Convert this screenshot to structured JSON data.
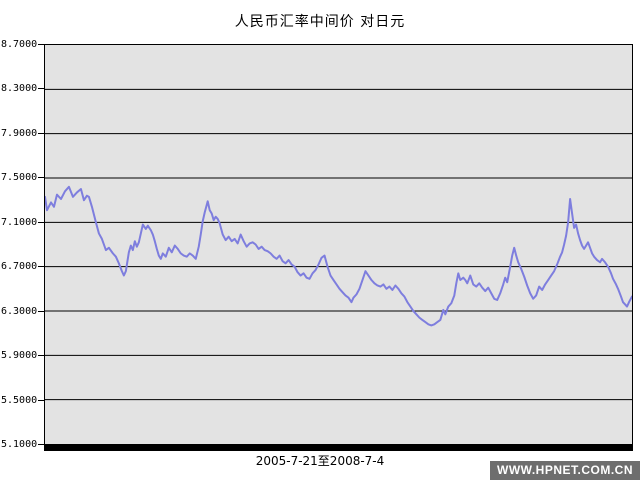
{
  "title": "人民币汇率中间价  对日元",
  "x_axis_label": "2005-7-21至2008-7-4",
  "watermark": "WWW.HPNET.COM.CN",
  "colors": {
    "line": "#7e7ede",
    "plot_bg": "#e3e3e3",
    "grid": "#000000",
    "axis": "#000000",
    "watermark_bg": "#6e6e6e",
    "watermark_text": "#ffffff"
  },
  "chart_data": {
    "type": "line",
    "title": "人民币汇率中间价  对日元",
    "xlabel": "2005-7-21至2008-7-4",
    "ylabel": "",
    "x_range": [
      "2005-7-21",
      "2008-7-4"
    ],
    "ylim": [
      5.1,
      8.7
    ],
    "y_ticks": [
      8.7,
      8.3,
      7.9,
      7.5,
      7.1,
      6.7,
      6.3,
      5.9,
      5.5,
      5.1
    ],
    "y_tick_labels": [
      "8.7000",
      "8.3000",
      "7.9000",
      "7.5000",
      "7.1000",
      "6.7000",
      "6.3000",
      "5.9000",
      "5.5000",
      "5.1000"
    ],
    "grid": true,
    "legend": false,
    "points": [
      [
        0.0,
        7.33
      ],
      [
        0.0034,
        7.21
      ],
      [
        0.0102,
        7.28
      ],
      [
        0.0153,
        7.24
      ],
      [
        0.0204,
        7.35
      ],
      [
        0.0272,
        7.31
      ],
      [
        0.034,
        7.38
      ],
      [
        0.0408,
        7.42
      ],
      [
        0.0476,
        7.33
      ],
      [
        0.0544,
        7.37
      ],
      [
        0.0612,
        7.4
      ],
      [
        0.0663,
        7.3
      ],
      [
        0.0714,
        7.34
      ],
      [
        0.0748,
        7.33
      ],
      [
        0.0799,
        7.24
      ],
      [
        0.0867,
        7.1
      ],
      [
        0.0918,
        7.0
      ],
      [
        0.0969,
        6.95
      ],
      [
        0.1037,
        6.85
      ],
      [
        0.1088,
        6.87
      ],
      [
        0.1156,
        6.82
      ],
      [
        0.1207,
        6.79
      ],
      [
        0.1259,
        6.73
      ],
      [
        0.131,
        6.66
      ],
      [
        0.1344,
        6.62
      ],
      [
        0.1378,
        6.66
      ],
      [
        0.1429,
        6.83
      ],
      [
        0.1463,
        6.89
      ],
      [
        0.1497,
        6.85
      ],
      [
        0.1531,
        6.93
      ],
      [
        0.1565,
        6.88
      ],
      [
        0.1599,
        6.92
      ],
      [
        0.1633,
        7.0
      ],
      [
        0.1667,
        7.08
      ],
      [
        0.1718,
        7.04
      ],
      [
        0.1752,
        7.07
      ],
      [
        0.1803,
        7.03
      ],
      [
        0.1837,
        6.99
      ],
      [
        0.1871,
        6.93
      ],
      [
        0.1905,
        6.86
      ],
      [
        0.1939,
        6.8
      ],
      [
        0.1973,
        6.77
      ],
      [
        0.2007,
        6.82
      ],
      [
        0.2058,
        6.79
      ],
      [
        0.2109,
        6.87
      ],
      [
        0.216,
        6.83
      ],
      [
        0.2211,
        6.89
      ],
      [
        0.2262,
        6.86
      ],
      [
        0.2313,
        6.82
      ],
      [
        0.2364,
        6.8
      ],
      [
        0.2415,
        6.79
      ],
      [
        0.2466,
        6.82
      ],
      [
        0.2517,
        6.8
      ],
      [
        0.2568,
        6.77
      ],
      [
        0.2619,
        6.88
      ],
      [
        0.2653,
        6.99
      ],
      [
        0.2687,
        7.11
      ],
      [
        0.2721,
        7.19
      ],
      [
        0.2772,
        7.29
      ],
      [
        0.2806,
        7.21
      ],
      [
        0.284,
        7.18
      ],
      [
        0.2874,
        7.12
      ],
      [
        0.2908,
        7.15
      ],
      [
        0.2942,
        7.13
      ],
      [
        0.2976,
        7.09
      ],
      [
        0.3027,
        6.99
      ],
      [
        0.3078,
        6.94
      ],
      [
        0.3129,
        6.97
      ],
      [
        0.318,
        6.93
      ],
      [
        0.3231,
        6.95
      ],
      [
        0.3282,
        6.91
      ],
      [
        0.3333,
        6.99
      ],
      [
        0.3384,
        6.93
      ],
      [
        0.3435,
        6.88
      ],
      [
        0.3486,
        6.91
      ],
      [
        0.3537,
        6.92
      ],
      [
        0.3588,
        6.9
      ],
      [
        0.3639,
        6.86
      ],
      [
        0.369,
        6.88
      ],
      [
        0.3741,
        6.85
      ],
      [
        0.3793,
        6.84
      ],
      [
        0.3844,
        6.82
      ],
      [
        0.3895,
        6.79
      ],
      [
        0.3946,
        6.77
      ],
      [
        0.3997,
        6.8
      ],
      [
        0.4048,
        6.75
      ],
      [
        0.4099,
        6.73
      ],
      [
        0.415,
        6.76
      ],
      [
        0.4201,
        6.72
      ],
      [
        0.4252,
        6.7
      ],
      [
        0.4303,
        6.65
      ],
      [
        0.4354,
        6.62
      ],
      [
        0.4405,
        6.64
      ],
      [
        0.4456,
        6.6
      ],
      [
        0.4507,
        6.59
      ],
      [
        0.4558,
        6.64
      ],
      [
        0.4609,
        6.67
      ],
      [
        0.466,
        6.72
      ],
      [
        0.4711,
        6.78
      ],
      [
        0.4762,
        6.8
      ],
      [
        0.4813,
        6.7
      ],
      [
        0.4864,
        6.62
      ],
      [
        0.4915,
        6.58
      ],
      [
        0.4966,
        6.54
      ],
      [
        0.5017,
        6.5
      ],
      [
        0.5068,
        6.47
      ],
      [
        0.5119,
        6.44
      ],
      [
        0.517,
        6.42
      ],
      [
        0.5221,
        6.38
      ],
      [
        0.5255,
        6.42
      ],
      [
        0.5306,
        6.45
      ],
      [
        0.5357,
        6.5
      ],
      [
        0.5408,
        6.58
      ],
      [
        0.5459,
        6.66
      ],
      [
        0.551,
        6.62
      ],
      [
        0.5561,
        6.58
      ],
      [
        0.5612,
        6.55
      ],
      [
        0.5663,
        6.53
      ],
      [
        0.5714,
        6.52
      ],
      [
        0.5765,
        6.54
      ],
      [
        0.5816,
        6.5
      ],
      [
        0.5867,
        6.52
      ],
      [
        0.5918,
        6.49
      ],
      [
        0.5969,
        6.53
      ],
      [
        0.602,
        6.5
      ],
      [
        0.6071,
        6.46
      ],
      [
        0.6122,
        6.43
      ],
      [
        0.6173,
        6.38
      ],
      [
        0.6224,
        6.34
      ],
      [
        0.6276,
        6.3
      ],
      [
        0.6327,
        6.27
      ],
      [
        0.6378,
        6.24
      ],
      [
        0.6429,
        6.22
      ],
      [
        0.648,
        6.2
      ],
      [
        0.6531,
        6.18
      ],
      [
        0.6582,
        6.17
      ],
      [
        0.6633,
        6.18
      ],
      [
        0.6684,
        6.2
      ],
      [
        0.6735,
        6.22
      ],
      [
        0.6786,
        6.31
      ],
      [
        0.682,
        6.27
      ],
      [
        0.6871,
        6.34
      ],
      [
        0.6922,
        6.37
      ],
      [
        0.6973,
        6.44
      ],
      [
        0.7007,
        6.55
      ],
      [
        0.7041,
        6.64
      ],
      [
        0.7075,
        6.58
      ],
      [
        0.7126,
        6.6
      ],
      [
        0.716,
        6.58
      ],
      [
        0.7194,
        6.55
      ],
      [
        0.7245,
        6.62
      ],
      [
        0.7296,
        6.54
      ],
      [
        0.7347,
        6.52
      ],
      [
        0.7398,
        6.55
      ],
      [
        0.7449,
        6.51
      ],
      [
        0.75,
        6.48
      ],
      [
        0.7551,
        6.51
      ],
      [
        0.7602,
        6.46
      ],
      [
        0.7653,
        6.41
      ],
      [
        0.7704,
        6.4
      ],
      [
        0.7755,
        6.46
      ],
      [
        0.7806,
        6.54
      ],
      [
        0.784,
        6.6
      ],
      [
        0.7874,
        6.56
      ],
      [
        0.7925,
        6.7
      ],
      [
        0.7959,
        6.8
      ],
      [
        0.7993,
        6.87
      ],
      [
        0.8027,
        6.8
      ],
      [
        0.8061,
        6.74
      ],
      [
        0.8112,
        6.68
      ],
      [
        0.8163,
        6.61
      ],
      [
        0.8214,
        6.53
      ],
      [
        0.8265,
        6.46
      ],
      [
        0.8316,
        6.41
      ],
      [
        0.8367,
        6.44
      ],
      [
        0.8418,
        6.52
      ],
      [
        0.8469,
        6.49
      ],
      [
        0.852,
        6.54
      ],
      [
        0.8571,
        6.58
      ],
      [
        0.8622,
        6.62
      ],
      [
        0.8673,
        6.66
      ],
      [
        0.8724,
        6.72
      ],
      [
        0.8776,
        6.79
      ],
      [
        0.881,
        6.83
      ],
      [
        0.8844,
        6.9
      ],
      [
        0.8878,
        6.98
      ],
      [
        0.8912,
        7.1
      ],
      [
        0.8946,
        7.31
      ],
      [
        0.898,
        7.18
      ],
      [
        0.9014,
        7.05
      ],
      [
        0.9048,
        7.08
      ],
      [
        0.9082,
        7.0
      ],
      [
        0.9116,
        6.94
      ],
      [
        0.915,
        6.89
      ],
      [
        0.9184,
        6.86
      ],
      [
        0.9218,
        6.89
      ],
      [
        0.9252,
        6.92
      ],
      [
        0.9286,
        6.87
      ],
      [
        0.932,
        6.82
      ],
      [
        0.9354,
        6.79
      ],
      [
        0.9405,
        6.76
      ],
      [
        0.9456,
        6.74
      ],
      [
        0.949,
        6.77
      ],
      [
        0.9541,
        6.74
      ],
      [
        0.9592,
        6.7
      ],
      [
        0.9643,
        6.64
      ],
      [
        0.9677,
        6.59
      ],
      [
        0.9728,
        6.54
      ],
      [
        0.9762,
        6.5
      ],
      [
        0.9813,
        6.43
      ],
      [
        0.9847,
        6.38
      ],
      [
        0.9881,
        6.36
      ],
      [
        0.9915,
        6.34
      ],
      [
        0.9949,
        6.38
      ],
      [
        1.0,
        6.43
      ]
    ]
  }
}
